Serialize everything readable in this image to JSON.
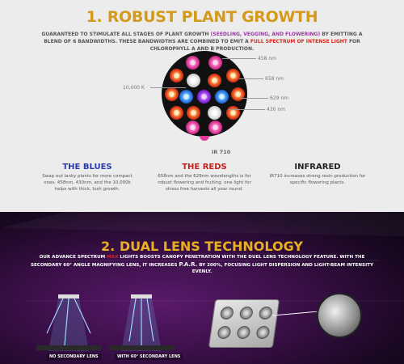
{
  "section1": {
    "title": "1. ROBUST PLANT GROWTH",
    "subtitle_a": "GUARANTEED TO STIMULATE ALL STAGES OF PLANT GROWTH ",
    "subtitle_b": "(SEEDLING, VEGGING, AND FLOWERING)",
    "subtitle_c": " BY EMITTING A BLEND OF 6 BANDWIDTHS. THESE BANDWIDTHS ARE COMBINED TO EMIT A ",
    "subtitle_d": "FULL SPECTRUM OF INTENSE LIGHT",
    "subtitle_e": " FOR CHLOROPHYLL A AND B PRODUCTION.",
    "labels": {
      "nm458": "458 nm",
      "nm658": "658 nm",
      "k10000": "10,000 K",
      "nm629": "629 nm",
      "nm430": "430 nm",
      "ir710": "IR 710"
    },
    "columns": [
      {
        "heading": "THE BLUES",
        "color": "#2a3aa8",
        "text": "Swap out lanky plants for more compact ones. 458nm, 430nm, and the 10,000k helps with thick, lush growth."
      },
      {
        "heading": "THE REDS",
        "color": "#c8201c",
        "text": "658nm and the 629nm wavelengths is for robust flowering and fruiting. one light for stress free harvests all year round."
      },
      {
        "heading": "INFRARED",
        "color": "#222222",
        "text": "IR710 increases strong resin production for specific flowering plants."
      }
    ]
  },
  "section2": {
    "title": "2. DUAL LENS TECHNOLOGY",
    "subtitle_a": "OUR ADVANCE SPECTRUM ",
    "subtitle_b": "MAX",
    "subtitle_c": " LIGHTS BOOSTS CANOPY PENETRATION WITH THE DUEL LENS TECHNOLOGY FEATURE. WITH THE SECONDARY 60° ANGLE MAGNIFYING LENS, IT INCREASES ",
    "subtitle_d": "P.A.R.",
    "subtitle_e": " BY 200%, FOCUSING LIGHT DISPERSION AND LIGHT-BEAM INTENSITY EVENLY.",
    "tag_no_lens": "NO SECONDARY LENS",
    "tag_with_lens": "WITH 60° SECONDARY LENS"
  }
}
